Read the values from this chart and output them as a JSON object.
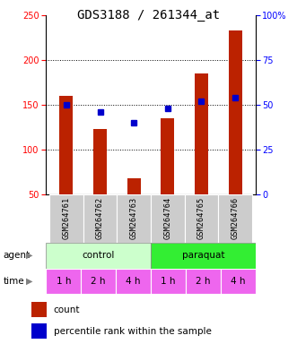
{
  "title": "GDS3188 / 261344_at",
  "samples": [
    "GSM264761",
    "GSM264762",
    "GSM264763",
    "GSM264764",
    "GSM264765",
    "GSM264766"
  ],
  "counts": [
    160,
    123,
    68,
    135,
    185,
    233
  ],
  "percentiles": [
    50,
    46,
    40,
    48,
    52,
    54
  ],
  "bar_color": "#bb2200",
  "dot_color": "#0000cc",
  "left_ylim": [
    50,
    250
  ],
  "right_ylim": [
    0,
    100
  ],
  "left_yticks": [
    50,
    100,
    150,
    200,
    250
  ],
  "right_yticks": [
    0,
    25,
    50,
    75,
    100
  ],
  "right_yticklabels": [
    "0",
    "25",
    "50",
    "75",
    "100%"
  ],
  "agent_labels": [
    "control",
    "paraquat"
  ],
  "control_color": "#ccffcc",
  "paraquat_color": "#33ee33",
  "time_labels": [
    "1 h",
    "2 h",
    "4 h",
    "1 h",
    "2 h",
    "4 h"
  ],
  "time_color": "#ee66ee",
  "sample_bg_color": "#cccccc",
  "title_fontsize": 10,
  "tick_fontsize": 7,
  "bar_width": 0.4
}
